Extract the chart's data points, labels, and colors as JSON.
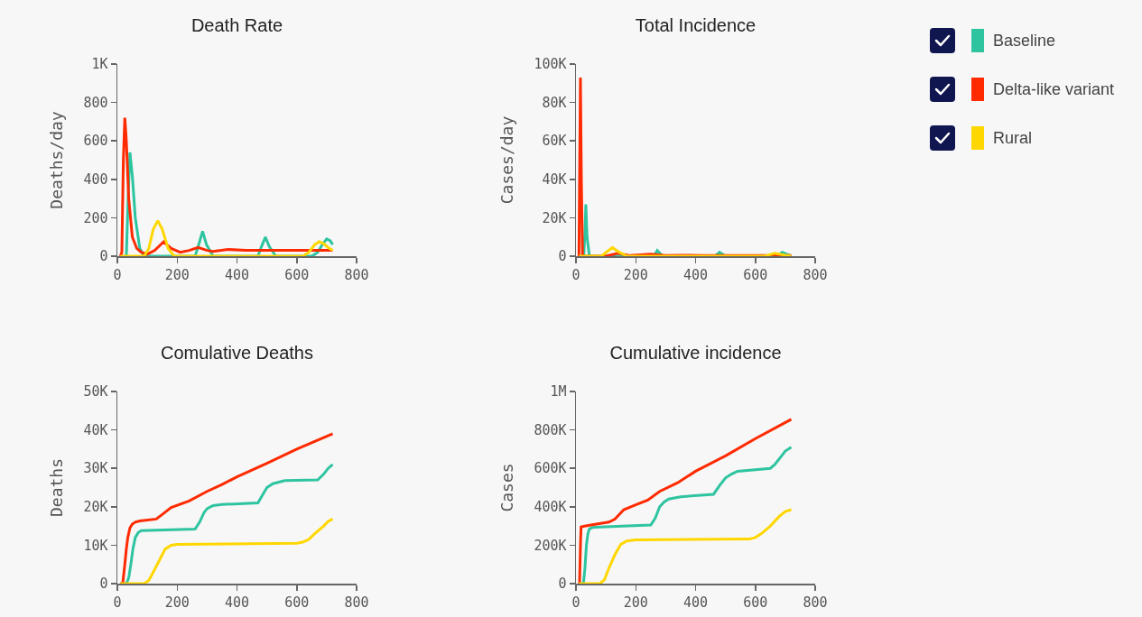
{
  "chart_data": [
    {
      "type": "line",
      "title": "Death Rate",
      "ylabel": "Deaths/day",
      "xlim": [
        0,
        800
      ],
      "xticks": [
        0,
        200,
        400,
        600,
        800
      ],
      "ylim": [
        0,
        1000
      ],
      "yticks": [
        0,
        200,
        400,
        600,
        800,
        {
          "value": 1000,
          "label": "1K"
        }
      ],
      "grid": false,
      "legend": "top right",
      "line_style": "solid",
      "marker": "none",
      "series": [
        {
          "name": "Baseline",
          "color": "#2ec4a0",
          "x": [
            10,
            30,
            36,
            42,
            50,
            60,
            75,
            90,
            260,
            272,
            285,
            298,
            320,
            470,
            482,
            495,
            508,
            530,
            650,
            670,
            685,
            700,
            712,
            720
          ],
          "values": [
            0,
            0,
            300,
            540,
            420,
            200,
            40,
            0,
            0,
            60,
            130,
            60,
            0,
            0,
            50,
            100,
            50,
            0,
            0,
            20,
            60,
            90,
            80,
            60
          ]
        },
        {
          "name": "Delta-like variant",
          "color": "#ff2a00",
          "x": [
            10,
            15,
            20,
            25,
            30,
            38,
            50,
            65,
            80,
            100,
            125,
            155,
            180,
            210,
            240,
            270,
            300,
            320,
            370,
            430,
            500,
            600,
            720
          ],
          "values": [
            0,
            20,
            500,
            720,
            600,
            300,
            100,
            40,
            20,
            10,
            30,
            75,
            40,
            20,
            30,
            45,
            30,
            25,
            35,
            30,
            30,
            30,
            30
          ]
        },
        {
          "name": "Rural",
          "color": "#ffd700",
          "x": [
            10,
            90,
            105,
            120,
            135,
            150,
            170,
            190,
            620,
            640,
            660,
            675,
            690,
            705,
            720
          ],
          "values": [
            0,
            0,
            40,
            140,
            185,
            140,
            40,
            0,
            0,
            20,
            60,
            75,
            65,
            45,
            30
          ]
        }
      ]
    },
    {
      "type": "line",
      "title": "Total Incidence",
      "ylabel": "Cases/day",
      "xlim": [
        0,
        800
      ],
      "xticks": [
        0,
        200,
        400,
        600,
        800
      ],
      "ylim": [
        0,
        100000
      ],
      "yticks": [
        0,
        {
          "value": 20000,
          "label": "20K"
        },
        {
          "value": 40000,
          "label": "40K"
        },
        {
          "value": 60000,
          "label": "60K"
        },
        {
          "value": 80000,
          "label": "80K"
        },
        {
          "value": 100000,
          "label": "100K"
        }
      ],
      "grid": false,
      "line_style": "solid",
      "marker": "none",
      "series": [
        {
          "color": "#2ec4a0",
          "x": [
            10,
            26,
            30,
            33,
            37,
            45,
            260,
            272,
            290,
            465,
            480,
            500,
            670,
            690,
            720
          ],
          "values": [
            0,
            0,
            12000,
            27000,
            10000,
            0,
            0,
            3000,
            0,
            0,
            2000,
            0,
            0,
            2000,
            0
          ]
        },
        {
          "color": "#ff2a00",
          "x": [
            10,
            12,
            15,
            18,
            22,
            100,
            140,
            180,
            250,
            300,
            360,
            420,
            720
          ],
          "values": [
            0,
            40000,
            93000,
            40000,
            0,
            0,
            1500,
            300,
            1000,
            300,
            500,
            300,
            300
          ]
        },
        {
          "color": "#ffd700",
          "x": [
            10,
            85,
            105,
            122,
            140,
            170,
            630,
            665,
            700,
            720
          ],
          "values": [
            0,
            0,
            2500,
            4500,
            2500,
            0,
            0,
            1500,
            500,
            0
          ]
        }
      ]
    },
    {
      "type": "line",
      "title": "Comulative Deaths",
      "ylabel": "Deaths",
      "xlim": [
        0,
        800
      ],
      "xticks": [
        0,
        200,
        400,
        600,
        800
      ],
      "ylim": [
        0,
        50000
      ],
      "yticks": [
        0,
        {
          "value": 10000,
          "label": "10K"
        },
        {
          "value": 20000,
          "label": "20K"
        },
        {
          "value": 30000,
          "label": "30K"
        },
        {
          "value": 40000,
          "label": "40K"
        },
        {
          "value": 50000,
          "label": "50K"
        }
      ],
      "grid": false,
      "line_style": "solid",
      "marker": "none",
      "series": [
        {
          "color": "#2ec4a0",
          "x": [
            10,
            30,
            38,
            45,
            52,
            60,
            70,
            80,
            260,
            275,
            290,
            300,
            320,
            350,
            470,
            485,
            500,
            520,
            560,
            670,
            690,
            705,
            720
          ],
          "values": [
            0,
            0,
            1500,
            5000,
            9000,
            12000,
            13300,
            13800,
            14200,
            16000,
            18500,
            19500,
            20300,
            20600,
            21000,
            23000,
            25000,
            26000,
            26800,
            27000,
            28500,
            30000,
            31000
          ]
        },
        {
          "color": "#ff2a00",
          "x": [
            10,
            18,
            25,
            30,
            35,
            42,
            50,
            60,
            75,
            130,
            150,
            180,
            240,
            300,
            350,
            400,
            500,
            600,
            720
          ],
          "values": [
            0,
            0,
            5000,
            9000,
            12000,
            14500,
            15500,
            16000,
            16300,
            16800,
            18000,
            19800,
            21500,
            24000,
            25800,
            27800,
            31300,
            35000,
            39000
          ]
        },
        {
          "color": "#ffd700",
          "x": [
            10,
            90,
            105,
            120,
            140,
            160,
            180,
            200,
            600,
            620,
            640,
            660,
            690,
            705,
            720
          ],
          "values": [
            0,
            0,
            800,
            3000,
            6000,
            9000,
            10000,
            10200,
            10500,
            10800,
            11500,
            13000,
            15000,
            16200,
            16800
          ]
        }
      ]
    },
    {
      "type": "line",
      "title": "Cumulative incidence",
      "ylabel": "Cases",
      "xlim": [
        0,
        800
      ],
      "xticks": [
        0,
        200,
        400,
        600,
        800
      ],
      "ylim": [
        0,
        1000000
      ],
      "yticks": [
        0,
        {
          "value": 200000,
          "label": "200K"
        },
        {
          "value": 400000,
          "label": "400K"
        },
        {
          "value": 600000,
          "label": "600K"
        },
        {
          "value": 800000,
          "label": "800K"
        },
        {
          "value": 1000000,
          "label": "1M"
        }
      ],
      "grid": false,
      "line_style": "solid",
      "marker": "none",
      "series": [
        {
          "color": "#2ec4a0",
          "x": [
            10,
            25,
            30,
            35,
            40,
            45,
            55,
            80,
            250,
            265,
            280,
            295,
            310,
            350,
            460,
            480,
            500,
            520,
            540,
            650,
            665,
            680,
            700,
            720
          ],
          "values": [
            0,
            0,
            80000,
            200000,
            260000,
            285000,
            292000,
            295000,
            305000,
            340000,
            400000,
            425000,
            440000,
            452000,
            465000,
            510000,
            550000,
            570000,
            585000,
            600000,
            620000,
            650000,
            690000,
            710000
          ]
        },
        {
          "color": "#ff2a00",
          "x": [
            10,
            12,
            15,
            17,
            25,
            50,
            110,
            130,
            160,
            200,
            240,
            280,
            340,
            400,
            500,
            600,
            720
          ],
          "values": [
            0,
            0,
            200000,
            295000,
            298000,
            305000,
            320000,
            335000,
            385000,
            410000,
            435000,
            480000,
            525000,
            585000,
            665000,
            755000,
            855000
          ]
        },
        {
          "color": "#ffd700",
          "x": [
            10,
            80,
            95,
            110,
            130,
            150,
            170,
            200,
            580,
            600,
            620,
            650,
            680,
            700,
            720
          ],
          "values": [
            0,
            0,
            20000,
            80000,
            150000,
            205000,
            222000,
            228000,
            232000,
            240000,
            260000,
            300000,
            350000,
            375000,
            385000
          ]
        }
      ]
    }
  ]
}
